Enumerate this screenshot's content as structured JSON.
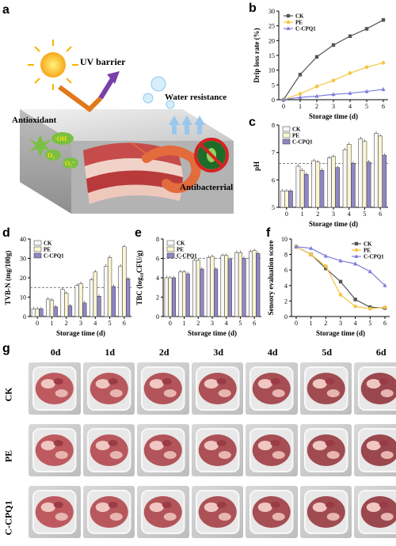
{
  "panels": {
    "a": "a",
    "b": "b",
    "c": "c",
    "d": "d",
    "e": "e",
    "f": "f",
    "g": "g"
  },
  "schematic": {
    "uv": "UV barrier",
    "water": "Water resistance",
    "antioxidant": "Antioxidant",
    "antibacterial": "Antibacterrial",
    "oh": "·OH",
    "o2": "O₂",
    "o2r": "O₂⁻"
  },
  "colors": {
    "CK": "#555555",
    "PE": "#f5c542",
    "CCPQ1": "#7e7edb",
    "CK_bar": "#f7f7f7",
    "PE_bar": "#fbf6d2",
    "CCPQ1_bar": "#8f86c6"
  },
  "chart_data": [
    {
      "id": "b",
      "type": "line",
      "xlabel": "Storage time (d)",
      "ylabel": "Drip loss rate (%)",
      "x": [
        0,
        1,
        2,
        3,
        4,
        5,
        6
      ],
      "xlim": [
        0,
        6
      ],
      "ylim": [
        0,
        30
      ],
      "yticks": [
        0,
        5,
        10,
        15,
        20,
        25,
        30
      ],
      "legend": "top-left",
      "series": [
        {
          "name": "CK",
          "values": [
            0,
            8.5,
            14.5,
            18.5,
            21.5,
            24,
            27
          ]
        },
        {
          "name": "PE",
          "values": [
            0,
            2,
            4.5,
            6.5,
            9,
            11,
            12.5
          ]
        },
        {
          "name": "C-CPQ1",
          "values": [
            0,
            0.8,
            1.2,
            1.8,
            2.2,
            2.8,
            3.5
          ]
        }
      ]
    },
    {
      "id": "c",
      "type": "bar",
      "xlabel": "Storage time (d)",
      "ylabel": "pH",
      "categories": [
        "0",
        "1",
        "2",
        "3",
        "4",
        "5",
        "6"
      ],
      "ylim": [
        5,
        8
      ],
      "yticks": [
        5,
        6,
        7,
        8
      ],
      "refline": 6.6,
      "legend": "top-left",
      "series": [
        {
          "name": "CK",
          "values": [
            5.6,
            6.5,
            6.7,
            6.8,
            7.1,
            7.5,
            7.7
          ]
        },
        {
          "name": "PE",
          "values": [
            5.6,
            6.35,
            6.65,
            6.85,
            7.3,
            7.4,
            7.6
          ]
        },
        {
          "name": "C-CPQ1",
          "values": [
            5.6,
            6.2,
            6.35,
            6.45,
            6.6,
            6.65,
            6.9
          ]
        }
      ]
    },
    {
      "id": "d",
      "type": "bar",
      "xlabel": "Storage time (d)",
      "ylabel": "TVB-N (mg/100g)",
      "categories": [
        "0",
        "1",
        "2",
        "3",
        "4",
        "5",
        "6"
      ],
      "ylim": [
        0,
        40
      ],
      "yticks": [
        0,
        10,
        20,
        30,
        40
      ],
      "refline": 15,
      "legend": "top-left",
      "series": [
        {
          "name": "CK",
          "values": [
            4,
            9,
            14,
            16,
            19,
            26,
            26
          ]
        },
        {
          "name": "PE",
          "values": [
            4,
            8.5,
            12,
            17,
            23,
            30.5,
            36
          ]
        },
        {
          "name": "C-CPQ1",
          "values": [
            4,
            5,
            5.5,
            7,
            10.5,
            15.5,
            19.5
          ]
        }
      ]
    },
    {
      "id": "e",
      "type": "bar",
      "xlabel": "Storage time (d)",
      "ylabel": "TBC (log₁₀CFU/g)",
      "categories": [
        "0",
        "1",
        "2",
        "3",
        "4",
        "5",
        "6"
      ],
      "ylim": [
        0,
        8
      ],
      "yticks": [
        0,
        2,
        4,
        6,
        8
      ],
      "refline": 6,
      "legend": "top-left",
      "series": [
        {
          "name": "CK",
          "values": [
            4,
            4.6,
            5.8,
            6.1,
            6.3,
            6.6,
            6.7
          ]
        },
        {
          "name": "PE",
          "values": [
            4,
            4.6,
            5.8,
            6.2,
            6.3,
            6.6,
            6.8
          ]
        },
        {
          "name": "C-CPQ1",
          "values": [
            4,
            4.4,
            4.9,
            4.9,
            5.9,
            6.0,
            6.5
          ]
        }
      ]
    },
    {
      "id": "f",
      "type": "line",
      "xlabel": "Storage time (d)",
      "ylabel": "Sensory evaluation score",
      "x": [
        0,
        1,
        2,
        3,
        4,
        5,
        6
      ],
      "xlim": [
        0,
        6
      ],
      "ylim": [
        0,
        10
      ],
      "yticks": [
        0,
        2,
        4,
        6,
        8,
        10
      ],
      "legend": "top-right",
      "series": [
        {
          "name": "CK",
          "values": [
            9,
            8,
            6.2,
            4.5,
            2.2,
            1.2,
            1.1
          ]
        },
        {
          "name": "PE",
          "values": [
            9,
            8,
            6.5,
            2.8,
            1.3,
            1.0,
            1.2
          ]
        },
        {
          "name": "C-CPQ1",
          "values": [
            9,
            8.8,
            7.8,
            7.2,
            6.8,
            5.8,
            4
          ]
        }
      ]
    }
  ],
  "photos": {
    "days": [
      "0d",
      "1d",
      "2d",
      "3d",
      "4d",
      "5d",
      "6d"
    ],
    "rows": [
      "CK",
      "PE",
      "C-CPQ1"
    ]
  }
}
